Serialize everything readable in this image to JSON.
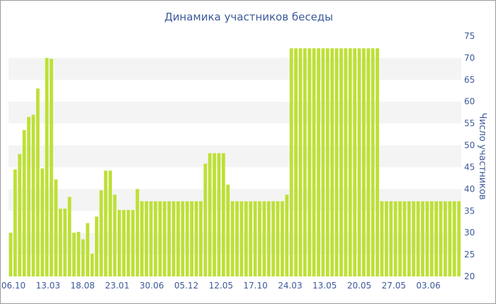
{
  "chart_data": {
    "type": "bar",
    "title": "Динамика участников беседы",
    "ylabel": "Число участников",
    "xlabel": "",
    "ylim": [
      20,
      75
    ],
    "y_ticks": [
      20,
      25,
      30,
      35,
      40,
      45,
      50,
      55,
      60,
      65,
      70,
      75
    ],
    "x_tick_labels": [
      "06.10",
      "13.03",
      "18.08",
      "23.01",
      "30.06",
      "05.12",
      "12.05",
      "17.10",
      "24.03",
      "13.05",
      "20.05",
      "27.05",
      "03.06"
    ],
    "alternate_bands": true,
    "colors": {
      "bar": "#bde036",
      "text": "#3d5a99",
      "band": "#f4f4f4"
    },
    "values": [
      30,
      44.5,
      48,
      53.5,
      56.5,
      57,
      63,
      44.7,
      70,
      69.8,
      42.2,
      35.5,
      35.5,
      38.2,
      30,
      30.2,
      28.5,
      32.2,
      25.2,
      33.7,
      39.7,
      44.2,
      44.2,
      38.7,
      35.2,
      35.2,
      35.2,
      35.2,
      40,
      37.2,
      37.2,
      37.2,
      37.2,
      37.2,
      37.2,
      37.2,
      37.2,
      37.2,
      37.2,
      37.2,
      37.2,
      37.2,
      37.2,
      45.8,
      48.2,
      48.2,
      48.2,
      48.2,
      41,
      37.2,
      37.2,
      37.2,
      37.2,
      37.2,
      37.2,
      37.2,
      37.2,
      37.2,
      37.2,
      37.2,
      37.2,
      38.7,
      72.2,
      72.2,
      72.2,
      72.2,
      72.2,
      72.2,
      72.2,
      72.2,
      72.2,
      72.2,
      72.2,
      72.2,
      72.2,
      72.2,
      72.2,
      72.2,
      72.2,
      72.2,
      72.2,
      72.2,
      37.2,
      37.2,
      37.2,
      37.2,
      37.2,
      37.2,
      37.2,
      37.2,
      37.2,
      37.2,
      37.2,
      37.2,
      37.2,
      37.2,
      37.2,
      37.2,
      37.2,
      37.2
    ]
  }
}
